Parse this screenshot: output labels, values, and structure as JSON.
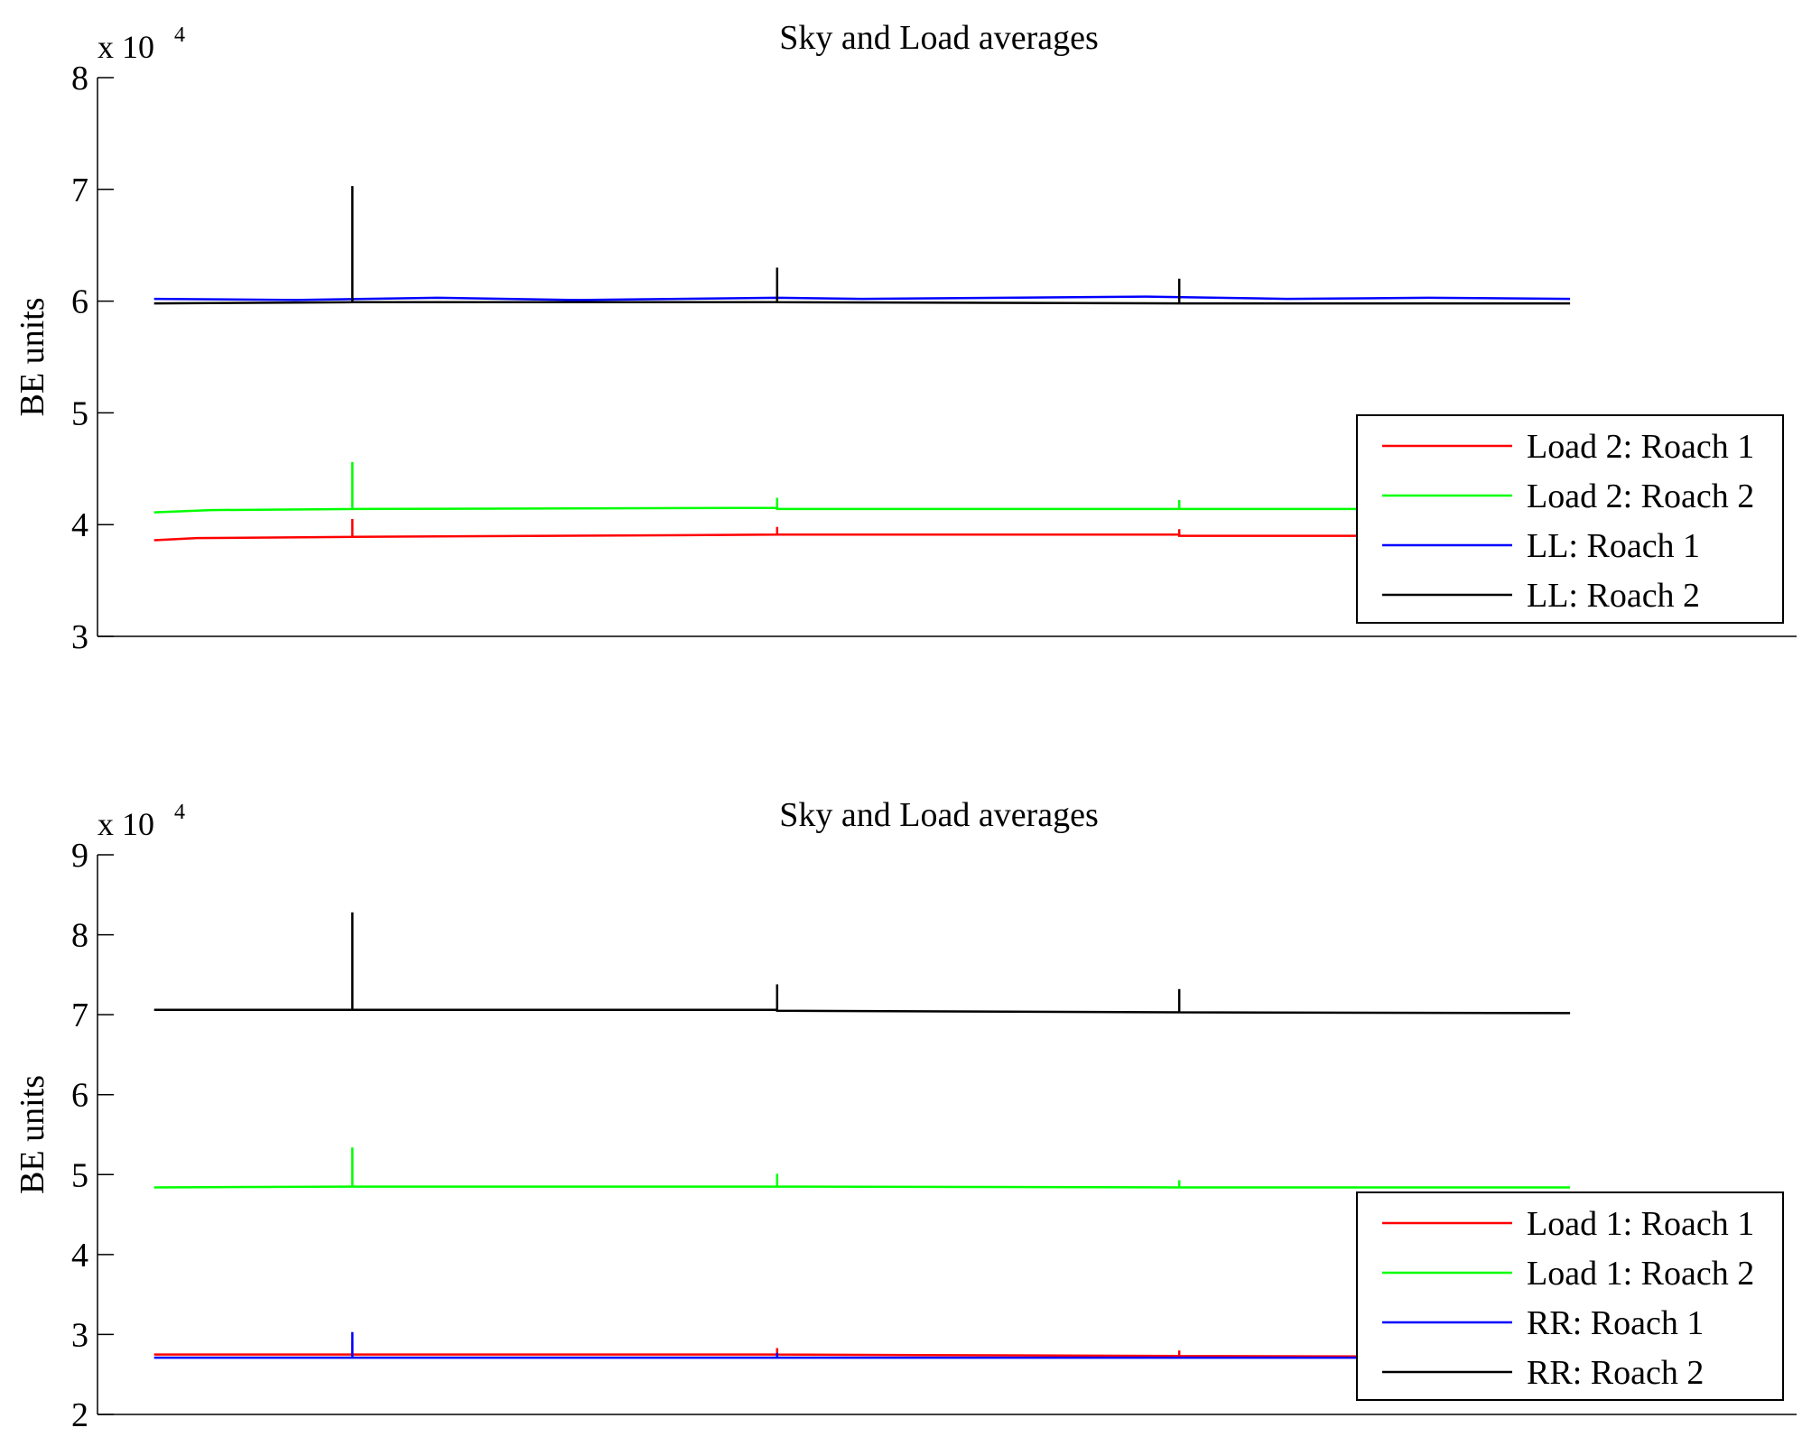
{
  "chart_data": [
    {
      "type": "line",
      "title": "Sky and Load averages",
      "xlabel": "",
      "ylabel": "BE units",
      "y_multiplier": "x 10",
      "y_exponent": "4",
      "ylim": [
        3,
        8
      ],
      "yticks": [
        "3",
        "4",
        "5",
        "6",
        "7",
        "8"
      ],
      "x_visible_range": [
        0,
        1000
      ],
      "xlim": [
        -40,
        1160
      ],
      "legend_position": "lower-right",
      "grid": false,
      "series": [
        {
          "name": "Load 2: Roach 1",
          "color": "#ff0000",
          "x": [
            0,
            30,
            140,
            140,
            140,
            440,
            440,
            440,
            724,
            724,
            724,
            860,
            1000
          ],
          "y": [
            3.86,
            3.88,
            3.89,
            4.05,
            3.89,
            3.91,
            3.98,
            3.91,
            3.91,
            3.96,
            3.9,
            3.9,
            3.89
          ]
        },
        {
          "name": "Load 2: Roach 2",
          "color": "#00ff00",
          "x": [
            0,
            40,
            140,
            140,
            140,
            440,
            440,
            440,
            724,
            724,
            724,
            1000
          ],
          "y": [
            4.11,
            4.13,
            4.14,
            4.56,
            4.14,
            4.15,
            4.24,
            4.14,
            4.14,
            4.22,
            4.14,
            4.14
          ]
        },
        {
          "name": "LL: Roach 1",
          "color": "#0000ff",
          "x": [
            0,
            100,
            200,
            300,
            440,
            500,
            600,
            700,
            800,
            900,
            1000
          ],
          "y": [
            6.02,
            6.01,
            6.03,
            6.01,
            6.03,
            6.02,
            6.03,
            6.04,
            6.02,
            6.03,
            6.02
          ]
        },
        {
          "name": "LL: Roach 2",
          "color": "#000000",
          "x": [
            0,
            140,
            140,
            140,
            440,
            440,
            440,
            724,
            724,
            724,
            1000
          ],
          "y": [
            5.98,
            5.99,
            7.03,
            5.99,
            5.99,
            6.3,
            5.99,
            5.98,
            6.2,
            5.98,
            5.98
          ]
        }
      ]
    },
    {
      "type": "line",
      "title": "Sky and Load averages",
      "xlabel": "",
      "ylabel": "BE units",
      "y_multiplier": "x 10",
      "y_exponent": "4",
      "ylim": [
        2,
        9
      ],
      "yticks": [
        "2",
        "3",
        "4",
        "5",
        "6",
        "7",
        "8",
        "9"
      ],
      "x_visible_range": [
        0,
        1000
      ],
      "xlim": [
        -40,
        1160
      ],
      "legend_position": "lower-right",
      "grid": false,
      "series": [
        {
          "name": "Load 1: Roach 1",
          "color": "#ff0000",
          "x": [
            0,
            140,
            140,
            140,
            440,
            440,
            440,
            724,
            724,
            724,
            1000
          ],
          "y": [
            2.75,
            2.75,
            2.9,
            2.75,
            2.75,
            2.83,
            2.75,
            2.73,
            2.8,
            2.73,
            2.72
          ]
        },
        {
          "name": "Load 1: Roach 2",
          "color": "#00ff00",
          "x": [
            0,
            140,
            140,
            140,
            440,
            440,
            440,
            724,
            724,
            724,
            1000
          ],
          "y": [
            4.84,
            4.85,
            5.34,
            4.85,
            4.85,
            5.01,
            4.85,
            4.84,
            4.93,
            4.84,
            4.84
          ]
        },
        {
          "name": "RR: Roach 1",
          "color": "#0000ff",
          "x": [
            0,
            140,
            140,
            140,
            440,
            440,
            440,
            724,
            1000
          ],
          "y": [
            2.71,
            2.71,
            3.03,
            2.71,
            2.71,
            2.77,
            2.71,
            2.71,
            2.71
          ]
        },
        {
          "name": "RR: Roach 2",
          "color": "#000000",
          "x": [
            0,
            140,
            140,
            140,
            440,
            440,
            440,
            724,
            724,
            724,
            1000
          ],
          "y": [
            7.06,
            7.06,
            8.28,
            7.06,
            7.06,
            7.38,
            7.05,
            7.03,
            7.32,
            7.03,
            7.02
          ]
        }
      ]
    }
  ]
}
